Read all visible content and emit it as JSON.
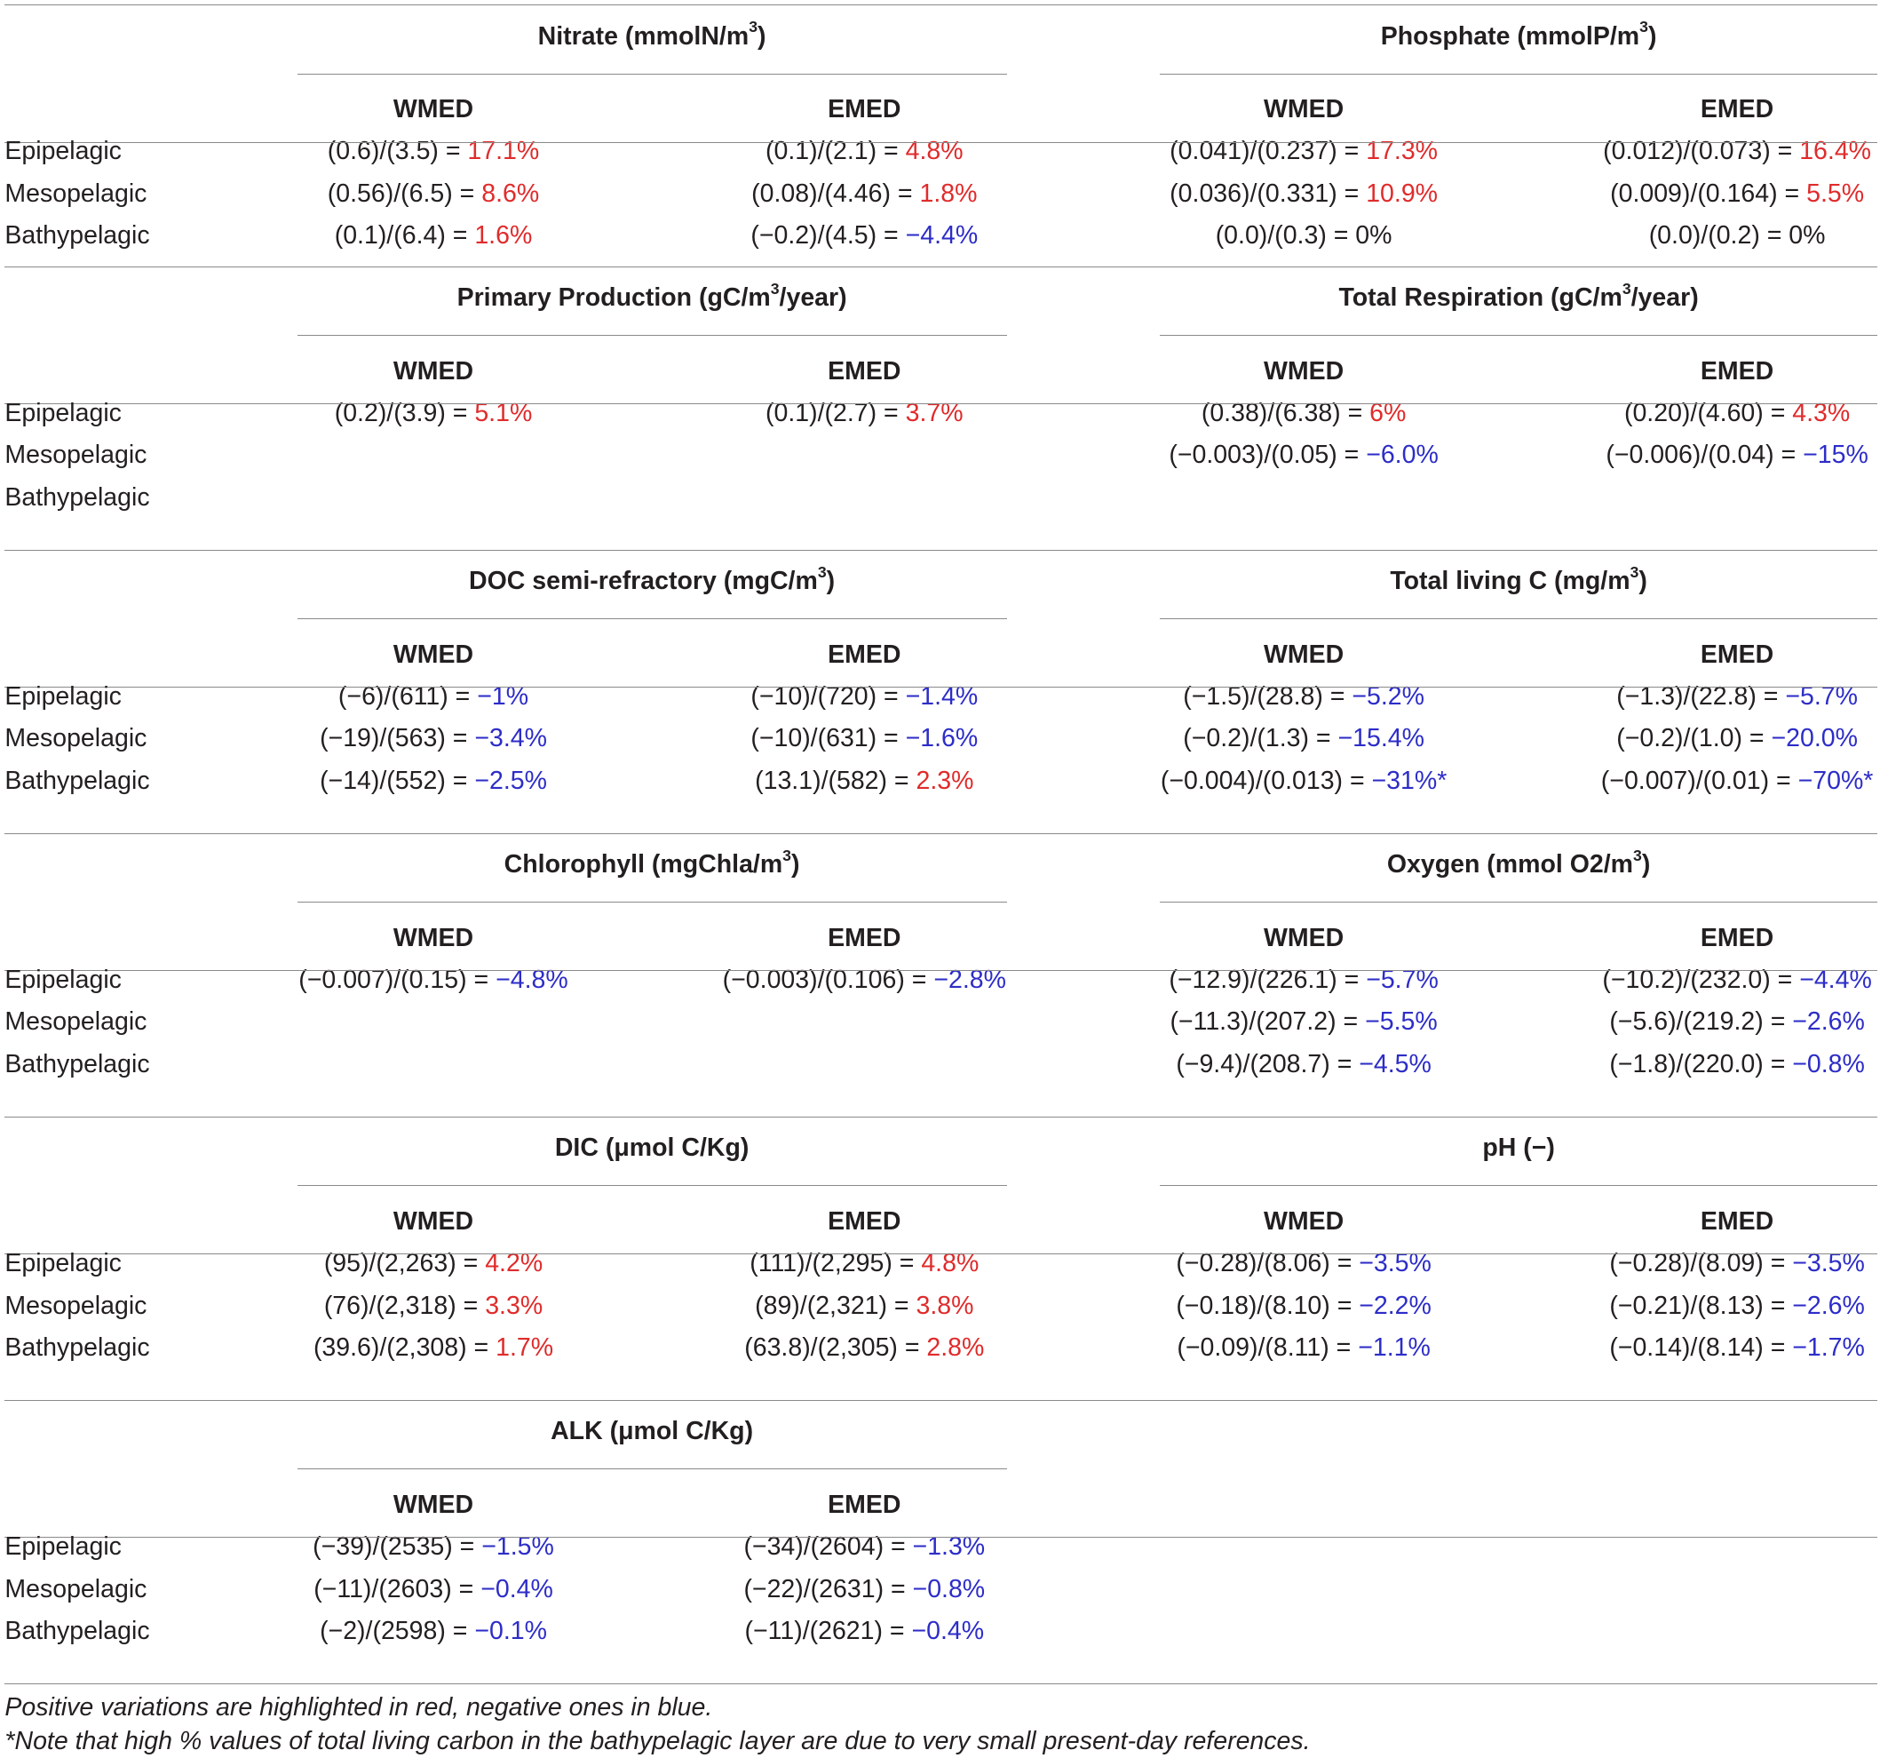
{
  "layers": [
    "Epipelagic",
    "Mesopelagic",
    "Bathypelagic"
  ],
  "region_labels": [
    "WMED",
    "EMED"
  ],
  "sections": [
    {
      "left": {
        "title": "Nitrate (mmolN/m",
        "title_sup": "3",
        "title_suffix": ")",
        "cells": [
          [
            {
              "expr": "(0.6)/(3.5) = ",
              "pct": "17.1%",
              "sign": "pos"
            },
            {
              "expr": "(0.1)/(2.1) = ",
              "pct": "4.8%",
              "sign": "pos"
            }
          ],
          [
            {
              "expr": "(0.56)/(6.5) = ",
              "pct": "8.6%",
              "sign": "pos"
            },
            {
              "expr": "(0.08)/(4.46) = ",
              "pct": "1.8%",
              "sign": "pos"
            }
          ],
          [
            {
              "expr": "(0.1)/(6.4) = ",
              "pct": "1.6%",
              "sign": "pos"
            },
            {
              "expr": "(−0.2)/(4.5) = ",
              "pct": "−4.4%",
              "sign": "neg"
            }
          ]
        ]
      },
      "right": {
        "title": "Phosphate (mmolP/m",
        "title_sup": "3",
        "title_suffix": ")",
        "cells": [
          [
            {
              "expr": "(0.041)/(0.237) = ",
              "pct": "17.3%",
              "sign": "pos"
            },
            {
              "expr": "(0.012)/(0.073) = ",
              "pct": "16.4%",
              "sign": "pos"
            }
          ],
          [
            {
              "expr": "(0.036)/(0.331) = ",
              "pct": "10.9%",
              "sign": "pos"
            },
            {
              "expr": "(0.009)/(0.164) = ",
              "pct": "5.5%",
              "sign": "pos"
            }
          ],
          [
            {
              "expr": "(0.0)/(0.3) = ",
              "pct": " 0%",
              "sign": "zero"
            },
            {
              "expr": "(0.0)/(0.2) = ",
              "pct": " 0%",
              "sign": "zero"
            }
          ]
        ]
      }
    },
    {
      "left": {
        "title": "Primary Production (gC/m",
        "title_sup": "3",
        "title_suffix": "/year)",
        "cells": [
          [
            {
              "expr": "(0.2)/(3.9) = ",
              "pct": "5.1%",
              "sign": "pos"
            },
            {
              "expr": "(0.1)/(2.7) = ",
              "pct": "3.7%",
              "sign": "pos"
            }
          ],
          [
            null,
            null
          ],
          [
            null,
            null
          ]
        ]
      },
      "right": {
        "title": "Total Respiration (gC/m",
        "title_sup": "3",
        "title_suffix": "/year)",
        "cells": [
          [
            {
              "expr": "(0.38)/(6.38) = ",
              "pct": "6%",
              "sign": "pos"
            },
            {
              "expr": "(0.20)/(4.60) = ",
              "pct": "4.3%",
              "sign": "pos"
            }
          ],
          [
            {
              "expr": "(−0.003)/(0.05) = ",
              "pct": "−6.0%",
              "sign": "neg"
            },
            {
              "expr": "(−0.006)/(0.04) = ",
              "pct": "−15%",
              "sign": "neg"
            }
          ],
          [
            null,
            null
          ]
        ]
      }
    },
    {
      "left": {
        "title": "DOC semi-refractory (mgC/m",
        "title_sup": "3",
        "title_suffix": ")",
        "cells": [
          [
            {
              "expr": "(−6)/(611) = ",
              "pct": "−1%",
              "sign": "neg"
            },
            {
              "expr": "(−10)/(720) = ",
              "pct": "−1.4%",
              "sign": "neg"
            }
          ],
          [
            {
              "expr": "(−19)/(563) = ",
              "pct": "−3.4%",
              "sign": "neg"
            },
            {
              "expr": "(−10)/(631) = ",
              "pct": "−1.6%",
              "sign": "neg"
            }
          ],
          [
            {
              "expr": "(−14)/(552) = ",
              "pct": "−2.5%",
              "sign": "neg"
            },
            {
              "expr": "(13.1)/(582) = ",
              "pct": "2.3%",
              "sign": "pos"
            }
          ]
        ]
      },
      "right": {
        "title": "Total living C (mg/m",
        "title_sup": "3",
        "title_suffix": ")",
        "cells": [
          [
            {
              "expr": "(−1.5)/(28.8) = ",
              "pct": "−5.2%",
              "sign": "neg"
            },
            {
              "expr": "(−1.3)/(22.8) = ",
              "pct": "−5.7%",
              "sign": "neg"
            }
          ],
          [
            {
              "expr": "(−0.2)/(1.3) = ",
              "pct": "−15.4%",
              "sign": "neg"
            },
            {
              "expr": "(−0.2)/(1.0) = ",
              "pct": "−20.0%",
              "sign": "neg"
            }
          ],
          [
            {
              "expr": "(−0.004)/(0.013) = ",
              "pct": "−31%*",
              "sign": "neg"
            },
            {
              "expr": "(−0.007)/(0.01) = ",
              "pct": "−70%*",
              "sign": "neg"
            }
          ]
        ]
      }
    },
    {
      "left": {
        "title": "Chlorophyll (mgChla/m",
        "title_sup": "3",
        "title_suffix": ")",
        "cells": [
          [
            {
              "expr": "(−0.007)/(0.15) = ",
              "pct": "−4.8%",
              "sign": "neg"
            },
            {
              "expr": "(−0.003)/(0.106) = ",
              "pct": "−2.8%",
              "sign": "neg"
            }
          ],
          [
            null,
            null
          ],
          [
            null,
            null
          ]
        ]
      },
      "right": {
        "title": "Oxygen (mmol O2/m",
        "title_sup": "3",
        "title_suffix": ")",
        "cells": [
          [
            {
              "expr": "(−12.9)/(226.1) = ",
              "pct": "−5.7%",
              "sign": "neg"
            },
            {
              "expr": "(−10.2)/(232.0) = ",
              "pct": "−4.4%",
              "sign": "neg"
            }
          ],
          [
            {
              "expr": "(−11.3)/(207.2) = ",
              "pct": "−5.5%",
              "sign": "neg"
            },
            {
              "expr": "(−5.6)/(219.2) = ",
              "pct": "−2.6%",
              "sign": "neg"
            }
          ],
          [
            {
              "expr": "(−9.4)/(208.7) = ",
              "pct": "−4.5%",
              "sign": "neg"
            },
            {
              "expr": "(−1.8)/(220.0) = ",
              "pct": "−0.8%",
              "sign": "neg"
            }
          ]
        ]
      }
    },
    {
      "left": {
        "title": "DIC (μmol C/Kg)",
        "title_sup": "",
        "title_suffix": "",
        "cells": [
          [
            {
              "expr": "(95)/(2,263) = ",
              "pct": "4.2%",
              "sign": "pos"
            },
            {
              "expr": "(111)/(2,295) = ",
              "pct": "4.8%",
              "sign": "pos"
            }
          ],
          [
            {
              "expr": "(76)/(2,318) = ",
              "pct": "3.3%",
              "sign": "pos"
            },
            {
              "expr": "(89)/(2,321) = ",
              "pct": "3.8%",
              "sign": "pos"
            }
          ],
          [
            {
              "expr": "(39.6)/(2,308) = ",
              "pct": "1.7%",
              "sign": "pos"
            },
            {
              "expr": "(63.8)/(2,305) = ",
              "pct": "2.8%",
              "sign": "pos"
            }
          ]
        ]
      },
      "right": {
        "title": "pH (−)",
        "title_sup": "",
        "title_suffix": "",
        "cells": [
          [
            {
              "expr": "(−0.28)/(8.06) = ",
              "pct": "−3.5%",
              "sign": "neg"
            },
            {
              "expr": "(−0.28)/(8.09) = ",
              "pct": "−3.5%",
              "sign": "neg"
            }
          ],
          [
            {
              "expr": "(−0.18)/(8.10) = ",
              "pct": "−2.2%",
              "sign": "neg"
            },
            {
              "expr": "(−0.21)/(8.13) = ",
              "pct": "−2.6%",
              "sign": "neg"
            }
          ],
          [
            {
              "expr": "(−0.09)/(8.11) = ",
              "pct": "−1.1%",
              "sign": "neg"
            },
            {
              "expr": "(−0.14)/(8.14) = ",
              "pct": "−1.7%",
              "sign": "neg"
            }
          ]
        ]
      }
    },
    {
      "left": {
        "title": "ALK (μmol C/Kg)",
        "title_sup": "",
        "title_suffix": "",
        "cells": [
          [
            {
              "expr": "(−39)/(2535) = ",
              "pct": "−1.5%",
              "sign": "neg"
            },
            {
              "expr": "(−34)/(2604) = ",
              "pct": "−1.3%",
              "sign": "neg"
            }
          ],
          [
            {
              "expr": "(−11)/(2603) = ",
              "pct": "−0.4%",
              "sign": "neg"
            },
            {
              "expr": "(−22)/(2631) = ",
              "pct": "−0.8%",
              "sign": "neg"
            }
          ],
          [
            {
              "expr": "(−2)/(2598) = ",
              "pct": "−0.1%",
              "sign": "neg"
            },
            {
              "expr": "(−11)/(2621) = ",
              "pct": "−0.4%",
              "sign": "neg"
            }
          ]
        ]
      },
      "right": null
    }
  ],
  "footnotes": [
    "Positive variations are highlighted in red, negative ones in blue.",
    "*Note that high % values of total living carbon in the bathypelagic layer are due to very small present-day references."
  ],
  "colors": {
    "positive": "#e02b2b",
    "negative": "#2d2dc8",
    "text": "#231f20",
    "rule": "#8a8a8a"
  }
}
